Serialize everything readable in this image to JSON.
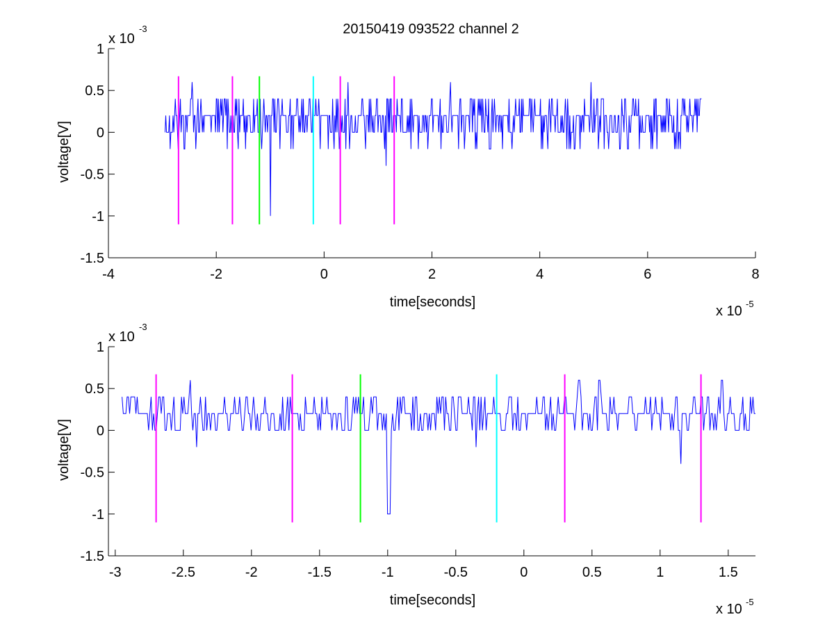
{
  "figure": {
    "title": "20150419 093522 channel 2"
  },
  "colors": {
    "signal": "#0000ff",
    "magenta": "#ff00ff",
    "green": "#00ff00",
    "cyan": "#00ffff",
    "axis": "#000000"
  },
  "chart_data": [
    {
      "type": "line",
      "title": "20150419 093522 channel 2",
      "xlabel": "time[seconds]",
      "ylabel": "voltage[V]",
      "x_exponent_label": "x 10",
      "x_exponent": "-5",
      "y_exponent_label": "x 10",
      "y_exponent": "-3",
      "xlim": [
        -4,
        8
      ],
      "ylim": [
        -1.5,
        1
      ],
      "xticks": [
        -4,
        -2,
        0,
        2,
        4,
        6,
        8
      ],
      "xtick_labels": [
        "-4",
        "-2",
        "0",
        "2",
        "4",
        "6",
        "8"
      ],
      "yticks": [
        -1.5,
        -1,
        -0.5,
        0,
        0.5,
        1
      ],
      "ytick_labels": [
        "-1.5",
        "-1",
        "-0.5",
        "0",
        "0.5",
        "1"
      ],
      "grid": false,
      "series": [
        {
          "color": "#0000ff",
          "x_range": [
            -2.95,
            7.0
          ],
          "baseline": 0.2,
          "levels": [
            -0.2,
            0,
            0.2,
            0.4,
            0.6
          ],
          "spikes": [
            [
              -2.45,
              0.6
            ],
            [
              -1.0,
              -1.0
            ],
            [
              0.45,
              0.6
            ],
            [
              1.15,
              -0.4
            ],
            [
              2.35,
              0.6
            ],
            [
              4.95,
              0.6
            ]
          ]
        }
      ],
      "markers": [
        {
          "x": -2.7,
          "color": "#ff00ff",
          "y_range": [
            -1.1,
            0.67
          ]
        },
        {
          "x": -1.7,
          "color": "#ff00ff",
          "y_range": [
            -1.1,
            0.67
          ]
        },
        {
          "x": -1.2,
          "color": "#00ff00",
          "y_range": [
            -1.1,
            0.67
          ]
        },
        {
          "x": -0.2,
          "color": "#00ffff",
          "y_range": [
            -1.1,
            0.67
          ]
        },
        {
          "x": 0.3,
          "color": "#ff00ff",
          "y_range": [
            -1.1,
            0.67
          ]
        },
        {
          "x": 1.3,
          "color": "#ff00ff",
          "y_range": [
            -1.1,
            0.67
          ]
        }
      ]
    },
    {
      "type": "line",
      "xlabel": "time[seconds]",
      "ylabel": "voltage[V]",
      "x_exponent_label": "x 10",
      "x_exponent": "-5",
      "y_exponent_label": "x 10",
      "y_exponent": "-3",
      "xlim": [
        -3.05,
        1.7
      ],
      "ylim": [
        -1.5,
        1
      ],
      "xticks": [
        -3,
        -2.5,
        -2,
        -1.5,
        -1,
        -0.5,
        0,
        0.5,
        1,
        1.5
      ],
      "xtick_labels": [
        "-3",
        "-2.5",
        "-2",
        "-1.5",
        "-1",
        "-0.5",
        "0",
        "0.5",
        "1",
        "1.5"
      ],
      "yticks": [
        -1.5,
        -1,
        -0.5,
        0,
        0.5,
        1
      ],
      "ytick_labels": [
        "-1.5",
        "-1",
        "-0.5",
        "0",
        "0.5",
        "1"
      ],
      "grid": false,
      "series": [
        {
          "color": "#0000ff",
          "x_range": [
            -2.95,
            1.7
          ],
          "baseline": 0.2,
          "levels": [
            0,
            0.2,
            0.4
          ],
          "spikes": [
            [
              -2.95,
              0.4
            ],
            [
              -2.45,
              0.6
            ],
            [
              -2.4,
              -0.2
            ],
            [
              -1.0,
              -1.0
            ],
            [
              -0.35,
              -0.2
            ],
            [
              0.4,
              0.6
            ],
            [
              0.55,
              0.6
            ],
            [
              1.15,
              -0.4
            ],
            [
              1.45,
              0.6
            ]
          ]
        }
      ],
      "markers": [
        {
          "x": -2.7,
          "color": "#ff00ff",
          "y_range": [
            -1.1,
            0.67
          ]
        },
        {
          "x": -1.7,
          "color": "#ff00ff",
          "y_range": [
            -1.1,
            0.67
          ]
        },
        {
          "x": -1.2,
          "color": "#00ff00",
          "y_range": [
            -1.1,
            0.67
          ]
        },
        {
          "x": -0.2,
          "color": "#00ffff",
          "y_range": [
            -1.1,
            0.67
          ]
        },
        {
          "x": 0.3,
          "color": "#ff00ff",
          "y_range": [
            -1.1,
            0.67
          ]
        },
        {
          "x": 1.3,
          "color": "#ff00ff",
          "y_range": [
            -1.1,
            0.67
          ]
        }
      ]
    }
  ]
}
